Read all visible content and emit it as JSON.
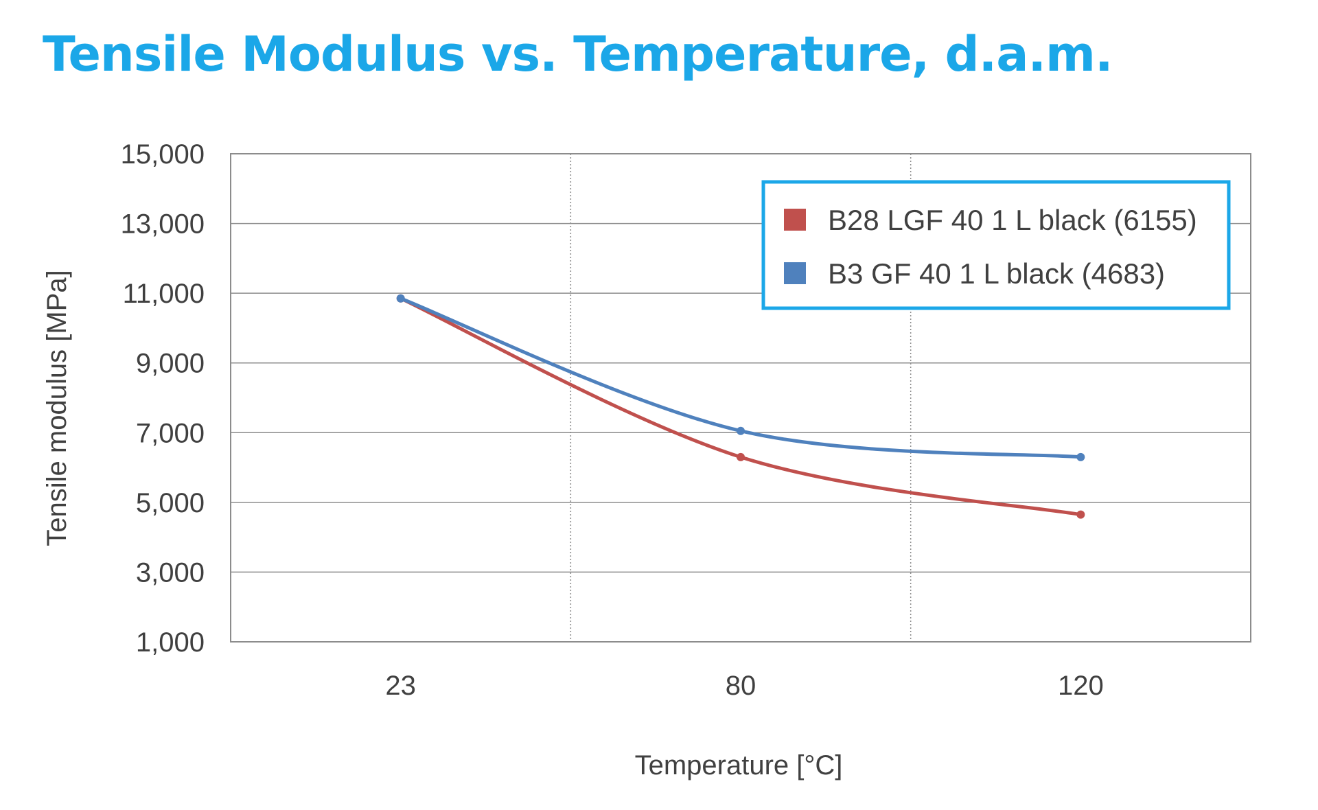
{
  "title": "Tensile Modulus vs. Temperature, d.a.m.",
  "colors": {
    "title": "#1ba7e8",
    "legend_border": "#1ba7e8",
    "grid": "#8c8c8c",
    "text": "#404040"
  },
  "chart_data": {
    "type": "line",
    "title": "Tensile Modulus vs. Temperature, d.a.m.",
    "xlabel": "Temperature [°C]",
    "ylabel": "Tensile modulus [MPa]",
    "categories": [
      "23",
      "80",
      "120"
    ],
    "ylim": [
      1000,
      15000
    ],
    "yticks": [
      "1,000",
      "3,000",
      "5,000",
      "7,000",
      "9,000",
      "11,000",
      "13,000",
      "15,000"
    ],
    "ytick_values": [
      1000,
      3000,
      5000,
      7000,
      9000,
      11000,
      13000,
      15000
    ],
    "grid": {
      "horizontal": true,
      "vertical_dotted": true
    },
    "legend_position": "top-right",
    "smooth": true,
    "series": [
      {
        "name": "B28 LGF 40 1 L black (6155)",
        "color": "#c0504d",
        "values": [
          10850,
          6300,
          4650
        ]
      },
      {
        "name": "B3 GF 40 1 L black (4683)",
        "color": "#4f81bd",
        "values": [
          10850,
          7050,
          6300
        ]
      }
    ]
  }
}
